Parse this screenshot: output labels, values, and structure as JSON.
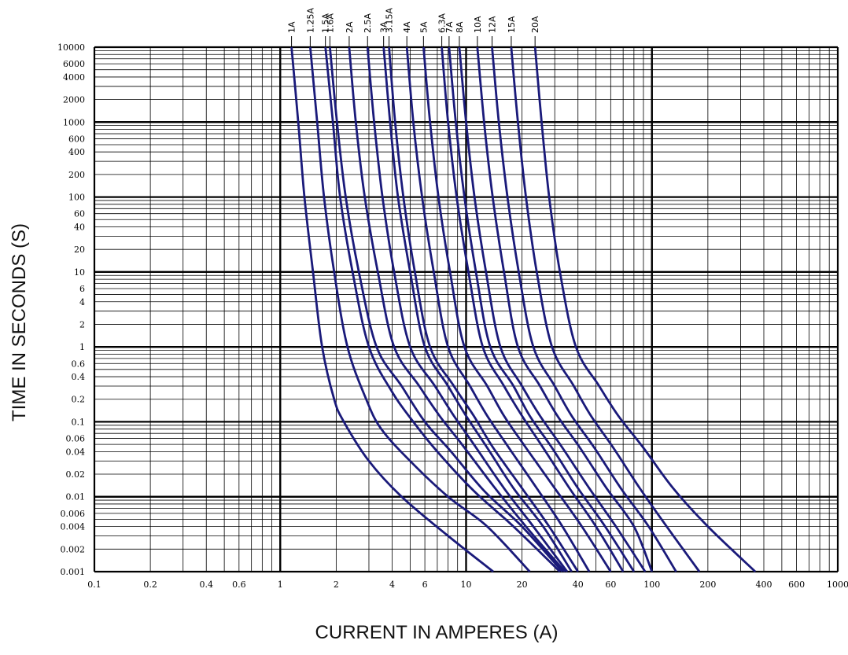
{
  "chart_data": {
    "type": "line",
    "title": "",
    "xlabel": "CURRENT IN AMPERES (A)",
    "ylabel": "TIME IN SECONDS (S)",
    "x_scale": "log",
    "y_scale": "log",
    "xlim": [
      0.1,
      1000
    ],
    "ylim": [
      0.001,
      10000
    ],
    "grid": true,
    "x_tick_labels": [
      "0.1",
      "0.2",
      "0.4",
      "0.6",
      "1",
      "2",
      "4",
      "6",
      "10",
      "20",
      "40",
      "60",
      "100",
      "200",
      "400",
      "600",
      "1000"
    ],
    "y_tick_labels": [
      "10000",
      "6000",
      "4000",
      "2000",
      "1000",
      "600",
      "400",
      "200",
      "100",
      "60",
      "40",
      "20",
      "10",
      "6",
      "4",
      "2",
      "1",
      "0.6",
      "0.4",
      "0.2",
      "0.1",
      "0.06",
      "0.04",
      "0.02",
      "0.01",
      "0.006",
      "0.004",
      "0.002",
      "0.001"
    ],
    "series": [
      {
        "name": "1A",
        "points": [
          [
            1.15,
            10000
          ],
          [
            1.25,
            1000
          ],
          [
            1.35,
            100
          ],
          [
            1.5,
            10
          ],
          [
            1.68,
            1
          ],
          [
            1.95,
            0.2
          ],
          [
            2.2,
            0.1
          ],
          [
            3.0,
            0.03
          ],
          [
            4.5,
            0.01
          ],
          [
            8,
            0.003
          ],
          [
            14,
            0.001
          ]
        ]
      },
      {
        "name": "1.25A",
        "points": [
          [
            1.45,
            10000
          ],
          [
            1.58,
            1000
          ],
          [
            1.72,
            100
          ],
          [
            1.95,
            10
          ],
          [
            2.3,
            1
          ],
          [
            2.9,
            0.2
          ],
          [
            3.5,
            0.08
          ],
          [
            5.0,
            0.03
          ],
          [
            8,
            0.01
          ],
          [
            13,
            0.004
          ],
          [
            22,
            0.001
          ]
        ]
      },
      {
        "name": "1.5A",
        "points": [
          [
            1.75,
            10000
          ],
          [
            1.92,
            1000
          ],
          [
            2.1,
            100
          ],
          [
            2.45,
            10
          ],
          [
            3.0,
            1
          ],
          [
            4.0,
            0.25
          ],
          [
            5.2,
            0.1
          ],
          [
            7.0,
            0.04
          ],
          [
            11,
            0.012
          ],
          [
            18,
            0.004
          ],
          [
            32,
            0.001
          ]
        ]
      },
      {
        "name": "1.6A",
        "points": [
          [
            1.85,
            10000
          ],
          [
            2.02,
            1000
          ],
          [
            2.25,
            100
          ],
          [
            2.65,
            10
          ],
          [
            3.3,
            1
          ],
          [
            4.5,
            0.3
          ],
          [
            6,
            0.1
          ],
          [
            8.3,
            0.04
          ],
          [
            12.5,
            0.012
          ],
          [
            20,
            0.004
          ],
          [
            33,
            0.001
          ]
        ]
      },
      {
        "name": "2A",
        "points": [
          [
            2.35,
            10000
          ],
          [
            2.55,
            1000
          ],
          [
            2.85,
            100
          ],
          [
            3.35,
            10
          ],
          [
            4.1,
            1
          ],
          [
            5.6,
            0.3
          ],
          [
            7.2,
            0.12
          ],
          [
            9.5,
            0.05
          ],
          [
            14,
            0.014
          ],
          [
            21,
            0.004
          ],
          [
            34,
            0.001
          ]
        ]
      },
      {
        "name": "2.5A",
        "points": [
          [
            2.95,
            10000
          ],
          [
            3.2,
            1000
          ],
          [
            3.55,
            100
          ],
          [
            4.1,
            10
          ],
          [
            5.0,
            1
          ],
          [
            6.8,
            0.3
          ],
          [
            8.6,
            0.12
          ],
          [
            11,
            0.05
          ],
          [
            16,
            0.013
          ],
          [
            23,
            0.004
          ],
          [
            35,
            0.001
          ]
        ]
      },
      {
        "name": "3A",
        "points": [
          [
            3.6,
            10000
          ],
          [
            3.9,
            1000
          ],
          [
            4.3,
            100
          ],
          [
            5.0,
            10
          ],
          [
            6.0,
            1
          ],
          [
            8.0,
            0.3
          ],
          [
            10,
            0.12
          ],
          [
            13,
            0.045
          ],
          [
            18,
            0.013
          ],
          [
            26,
            0.004
          ],
          [
            37,
            0.001
          ]
        ]
      },
      {
        "name": "3.15A",
        "points": [
          [
            3.85,
            10000
          ],
          [
            4.15,
            1000
          ],
          [
            4.6,
            100
          ],
          [
            5.3,
            10
          ],
          [
            6.4,
            1
          ],
          [
            8.6,
            0.3
          ],
          [
            11,
            0.12
          ],
          [
            14,
            0.045
          ],
          [
            20,
            0.013
          ],
          [
            28,
            0.004
          ],
          [
            40,
            0.001
          ]
        ]
      },
      {
        "name": "4A",
        "points": [
          [
            4.8,
            10000
          ],
          [
            5.2,
            1000
          ],
          [
            5.8,
            100
          ],
          [
            6.7,
            10
          ],
          [
            8.0,
            1
          ],
          [
            10.5,
            0.3
          ],
          [
            13,
            0.12
          ],
          [
            17,
            0.045
          ],
          [
            24,
            0.013
          ],
          [
            33,
            0.004
          ],
          [
            46,
            0.001
          ]
        ]
      },
      {
        "name": "5A",
        "points": [
          [
            5.9,
            10000
          ],
          [
            6.4,
            1000
          ],
          [
            7.1,
            100
          ],
          [
            8.2,
            10
          ],
          [
            9.8,
            1
          ],
          [
            13,
            0.3
          ],
          [
            16,
            0.12
          ],
          [
            21,
            0.045
          ],
          [
            30,
            0.013
          ],
          [
            42,
            0.004
          ],
          [
            60,
            0.001
          ]
        ]
      },
      {
        "name": "6.3A",
        "points": [
          [
            7.4,
            10000
          ],
          [
            8.0,
            1000
          ],
          [
            8.9,
            100
          ],
          [
            10.3,
            10
          ],
          [
            12.3,
            1
          ],
          [
            16,
            0.3
          ],
          [
            20,
            0.12
          ],
          [
            26,
            0.045
          ],
          [
            36,
            0.013
          ],
          [
            50,
            0.004
          ],
          [
            70,
            0.001
          ]
        ]
      },
      {
        "name": "7A",
        "points": [
          [
            8.1,
            10000
          ],
          [
            8.8,
            1000
          ],
          [
            9.8,
            100
          ],
          [
            11.3,
            10
          ],
          [
            13.5,
            1
          ],
          [
            18,
            0.3
          ],
          [
            22,
            0.12
          ],
          [
            29,
            0.045
          ],
          [
            40,
            0.013
          ],
          [
            56,
            0.004
          ],
          [
            80,
            0.001
          ]
        ]
      },
      {
        "name": "8A",
        "points": [
          [
            9.2,
            10000
          ],
          [
            10,
            1000
          ],
          [
            11.1,
            100
          ],
          [
            12.8,
            10
          ],
          [
            15.3,
            1
          ],
          [
            20,
            0.3
          ],
          [
            25,
            0.12
          ],
          [
            33,
            0.045
          ],
          [
            46,
            0.013
          ],
          [
            64,
            0.004
          ],
          [
            92,
            0.001
          ]
        ]
      },
      {
        "name": "10A",
        "points": [
          [
            11.5,
            10000
          ],
          [
            12.5,
            1000
          ],
          [
            13.9,
            100
          ],
          [
            16,
            10
          ],
          [
            19,
            1
          ],
          [
            25,
            0.3
          ],
          [
            31,
            0.12
          ],
          [
            41,
            0.045
          ],
          [
            57,
            0.013
          ],
          [
            80,
            0.004
          ],
          [
            100,
            0.001
          ]
        ]
      },
      {
        "name": "12A",
        "points": [
          [
            13.8,
            10000
          ],
          [
            15,
            1000
          ],
          [
            16.7,
            100
          ],
          [
            19.2,
            10
          ],
          [
            23,
            1
          ],
          [
            30,
            0.3
          ],
          [
            37,
            0.12
          ],
          [
            49,
            0.045
          ],
          [
            68,
            0.013
          ],
          [
            96,
            0.004
          ],
          [
            135,
            0.001
          ]
        ]
      },
      {
        "name": "15A",
        "points": [
          [
            17.5,
            10000
          ],
          [
            19,
            1000
          ],
          [
            21,
            100
          ],
          [
            24,
            10
          ],
          [
            29,
            1
          ],
          [
            38,
            0.3
          ],
          [
            47,
            0.12
          ],
          [
            62,
            0.045
          ],
          [
            86,
            0.013
          ],
          [
            120,
            0.004
          ],
          [
            180,
            0.001
          ]
        ]
      },
      {
        "name": "20A",
        "points": [
          [
            23.5,
            10000
          ],
          [
            25.5,
            1000
          ],
          [
            28,
            100
          ],
          [
            32,
            10
          ],
          [
            39,
            1
          ],
          [
            52,
            0.3
          ],
          [
            66,
            0.12
          ],
          [
            90,
            0.045
          ],
          [
            130,
            0.013
          ],
          [
            200,
            0.004
          ],
          [
            360,
            0.001
          ]
        ]
      }
    ]
  },
  "colors": {
    "curve": "#1a1a7a",
    "grid": "#000000",
    "background": "#ffffff"
  }
}
